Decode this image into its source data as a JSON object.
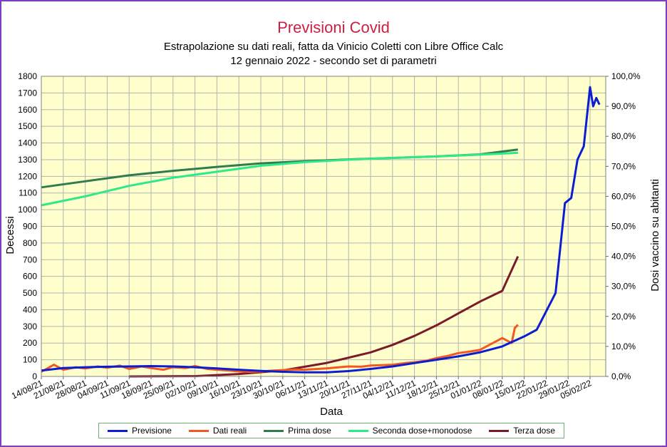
{
  "chart_data": {
    "type": "line",
    "title": "Previsioni Covid",
    "subtitle": [
      "Estrapolazione su dati reali, fatta da Vinicio Coletti con Libre Office Calc",
      "12 gennaio 2022 - secondo set di parametri"
    ],
    "xlabel": "Data",
    "ylabel": "Decessi",
    "y2label": "Dosi vaccino su abitanti",
    "ylim": [
      0,
      1800
    ],
    "y2lim": [
      0,
      100
    ],
    "yticks": [
      "0",
      "100",
      "200",
      "300",
      "400",
      "500",
      "600",
      "700",
      "800",
      "900",
      "1000",
      "1100",
      "1200",
      "1300",
      "1400",
      "1500",
      "1600",
      "1700",
      "1800"
    ],
    "y2ticks": [
      "0,0%",
      "10,0%",
      "20,0%",
      "30,0%",
      "40,0%",
      "50,0%",
      "60,0%",
      "70,0%",
      "80,0%",
      "90,0%",
      "100,0%"
    ],
    "xticks": [
      "14/08/21",
      "21/08/21",
      "28/08/21",
      "04/09/21",
      "11/09/21",
      "18/09/21",
      "25/09/21",
      "02/10/21",
      "09/10/21",
      "16/10/21",
      "23/10/21",
      "30/10/21",
      "06/11/21",
      "13/11/21",
      "20/11/21",
      "27/11/21",
      "04/12/21",
      "11/12/21",
      "18/12/21",
      "25/12/21",
      "01/01/22",
      "08/01/22",
      "15/01/22",
      "22/01/22",
      "29/01/22",
      "05/02/22"
    ],
    "grid": true,
    "legend_position": "bottom",
    "series": [
      {
        "name": "Previsione",
        "axis": "left",
        "color": "#0b1ed1",
        "points": [
          [
            "14/08/21",
            35
          ],
          [
            "21/08/21",
            50
          ],
          [
            "28/08/21",
            55
          ],
          [
            "04/09/21",
            58
          ],
          [
            "11/09/21",
            60
          ],
          [
            "18/09/21",
            62
          ],
          [
            "25/09/21",
            60
          ],
          [
            "02/10/21",
            55
          ],
          [
            "09/10/21",
            48
          ],
          [
            "16/10/21",
            40
          ],
          [
            "23/10/21",
            33
          ],
          [
            "30/10/21",
            28
          ],
          [
            "06/11/21",
            25
          ],
          [
            "13/11/21",
            25
          ],
          [
            "20/11/21",
            32
          ],
          [
            "27/11/21",
            45
          ],
          [
            "04/12/21",
            60
          ],
          [
            "11/12/21",
            80
          ],
          [
            "18/12/21",
            100
          ],
          [
            "25/12/21",
            120
          ],
          [
            "01/01/22",
            145
          ],
          [
            "08/01/22",
            180
          ],
          [
            "15/01/22",
            240
          ],
          [
            "19/01/22",
            280
          ],
          [
            "22/01/22",
            390
          ],
          [
            "25/01/22",
            500
          ],
          [
            "28/01/22",
            1040
          ],
          [
            "30/01/22",
            1070
          ],
          [
            "01/02/22",
            1300
          ],
          [
            "03/02/22",
            1380
          ],
          [
            "05/02/22",
            1735
          ],
          [
            "06/02/22",
            1620
          ],
          [
            "07/02/22",
            1670
          ],
          [
            "08/02/22",
            1630
          ]
        ]
      },
      {
        "name": "Dati reali",
        "axis": "left",
        "color": "#f2581f",
        "points": [
          [
            "14/08/21",
            28
          ],
          [
            "18/08/21",
            70
          ],
          [
            "21/08/21",
            40
          ],
          [
            "25/08/21",
            55
          ],
          [
            "28/08/21",
            48
          ],
          [
            "01/09/21",
            60
          ],
          [
            "04/09/21",
            52
          ],
          [
            "08/09/21",
            65
          ],
          [
            "11/09/21",
            45
          ],
          [
            "15/09/21",
            60
          ],
          [
            "18/09/21",
            50
          ],
          [
            "22/09/21",
            40
          ],
          [
            "25/09/21",
            55
          ],
          [
            "29/09/21",
            50
          ],
          [
            "02/10/21",
            62
          ],
          [
            "06/10/21",
            45
          ],
          [
            "09/10/21",
            40
          ],
          [
            "13/10/21",
            35
          ],
          [
            "16/10/21",
            30
          ],
          [
            "20/10/21",
            28
          ],
          [
            "23/10/21",
            30
          ],
          [
            "27/10/21",
            35
          ],
          [
            "30/10/21",
            38
          ],
          [
            "03/11/21",
            42
          ],
          [
            "06/11/21",
            40
          ],
          [
            "10/11/21",
            45
          ],
          [
            "13/11/21",
            48
          ],
          [
            "17/11/21",
            55
          ],
          [
            "20/11/21",
            60
          ],
          [
            "24/11/21",
            58
          ],
          [
            "27/11/21",
            65
          ],
          [
            "01/12/21",
            68
          ],
          [
            "04/12/21",
            70
          ],
          [
            "08/12/21",
            80
          ],
          [
            "11/12/21",
            85
          ],
          [
            "15/12/21",
            95
          ],
          [
            "18/12/21",
            110
          ],
          [
            "22/12/21",
            125
          ],
          [
            "25/12/21",
            140
          ],
          [
            "29/12/21",
            150
          ],
          [
            "01/01/22",
            160
          ],
          [
            "05/01/22",
            200
          ],
          [
            "08/01/22",
            230
          ],
          [
            "11/01/22",
            200
          ],
          [
            "12/01/22",
            290
          ],
          [
            "13/01/22",
            310
          ]
        ]
      },
      {
        "name": "Prima dose",
        "axis": "right",
        "color": "#2e7d4f",
        "points": [
          [
            "14/08/21",
            63
          ],
          [
            "28/08/21",
            65
          ],
          [
            "11/09/21",
            67
          ],
          [
            "25/09/21",
            68.5
          ],
          [
            "09/10/21",
            69.8
          ],
          [
            "23/10/21",
            71
          ],
          [
            "06/11/21",
            71.7
          ],
          [
            "20/11/21",
            72.3
          ],
          [
            "04/12/21",
            72.8
          ],
          [
            "18/12/21",
            73.3
          ],
          [
            "01/01/22",
            74
          ],
          [
            "13/01/22",
            75.6
          ]
        ]
      },
      {
        "name": "Seconda dose+monodose",
        "axis": "right",
        "color": "#2ee88a",
        "points": [
          [
            "14/08/21",
            57
          ],
          [
            "28/08/21",
            60
          ],
          [
            "11/09/21",
            63.5
          ],
          [
            "25/09/21",
            66.2
          ],
          [
            "09/10/21",
            68.2
          ],
          [
            "23/10/21",
            70.2
          ],
          [
            "06/11/21",
            71.4
          ],
          [
            "20/11/21",
            72.2
          ],
          [
            "04/12/21",
            72.8
          ],
          [
            "18/12/21",
            73.3
          ],
          [
            "01/01/22",
            73.9
          ],
          [
            "13/01/22",
            74.5
          ]
        ]
      },
      {
        "name": "Terza dose",
        "axis": "right",
        "color": "#7a1a2a",
        "points": [
          [
            "11/09/21",
            0
          ],
          [
            "02/10/21",
            0.1
          ],
          [
            "16/10/21",
            0.8
          ],
          [
            "30/10/21",
            2
          ],
          [
            "13/11/21",
            4.5
          ],
          [
            "27/11/21",
            8
          ],
          [
            "04/12/21",
            10.5
          ],
          [
            "11/12/21",
            13.5
          ],
          [
            "18/12/21",
            17
          ],
          [
            "25/12/21",
            21
          ],
          [
            "01/01/22",
            25
          ],
          [
            "08/01/22",
            28.5
          ],
          [
            "13/01/22",
            40
          ]
        ]
      }
    ]
  }
}
